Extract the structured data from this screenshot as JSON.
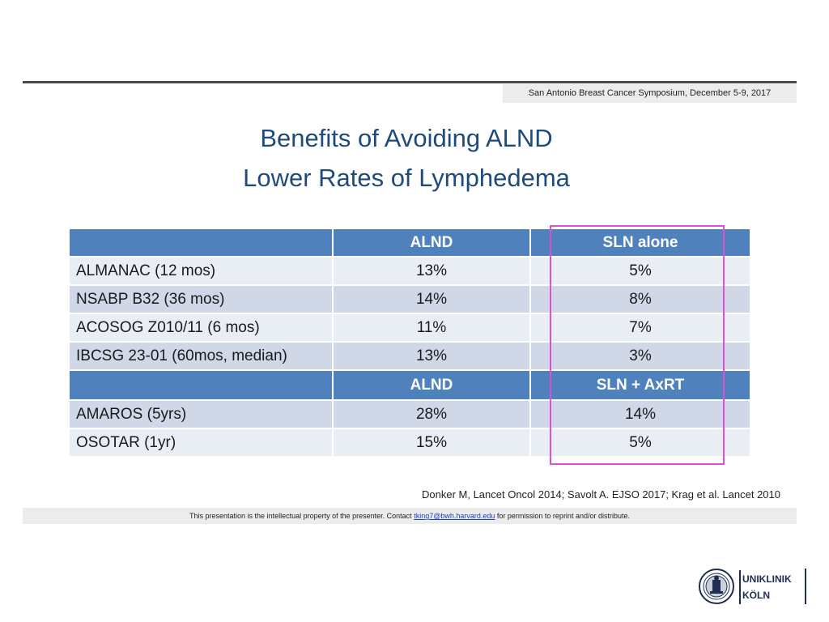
{
  "header": {
    "symposium": "San Antonio Breast Cancer Symposium, December 5-9, 2017"
  },
  "title": {
    "line1": "Benefits of Avoiding ALND",
    "line2": "Lower Rates of Lymphedema"
  },
  "table": {
    "group1": {
      "headers": [
        "",
        "ALND",
        "SLN alone"
      ],
      "rows": [
        {
          "study": "ALMANAC  (12 mos)",
          "alnd": "13%",
          "sln": "5%"
        },
        {
          "study": "NSABP B32 (36 mos)",
          "alnd": "14%",
          "sln": "8%"
        },
        {
          "study": "ACOSOG Z010/11 (6 mos)",
          "alnd": "11%",
          "sln": "7%"
        },
        {
          "study": "IBCSG 23-01 (60mos, median)",
          "alnd": "13%",
          "sln": "3%"
        }
      ]
    },
    "group2": {
      "headers": [
        "",
        "ALND",
        "SLN + AxRT"
      ],
      "rows": [
        {
          "study": "AMAROS (5yrs)",
          "alnd": "28%",
          "sln": "14%"
        },
        {
          "study": "OSOTAR (1yr)",
          "alnd": "15%",
          "sln": "5%"
        }
      ]
    }
  },
  "references": "Donker M, Lancet Oncol 2014; Savolt A. EJSO 2017; Krag et al. Lancet 2010",
  "footer": {
    "before": "This presentation is the intellectual property of the presenter.  Contact",
    "email": "tking7@bwh.harvard.edu",
    "after": "for permission to reprint and/or distribute."
  },
  "logo": {
    "line1": "UNIKLINIK",
    "line2": "KÖLN"
  },
  "colors": {
    "title": "#1f4a7c",
    "header_fill": "#4f81bd",
    "row_light": "#e9edf4",
    "row_dark": "#d0d8e8",
    "highlight_border": "#e04fd6"
  }
}
